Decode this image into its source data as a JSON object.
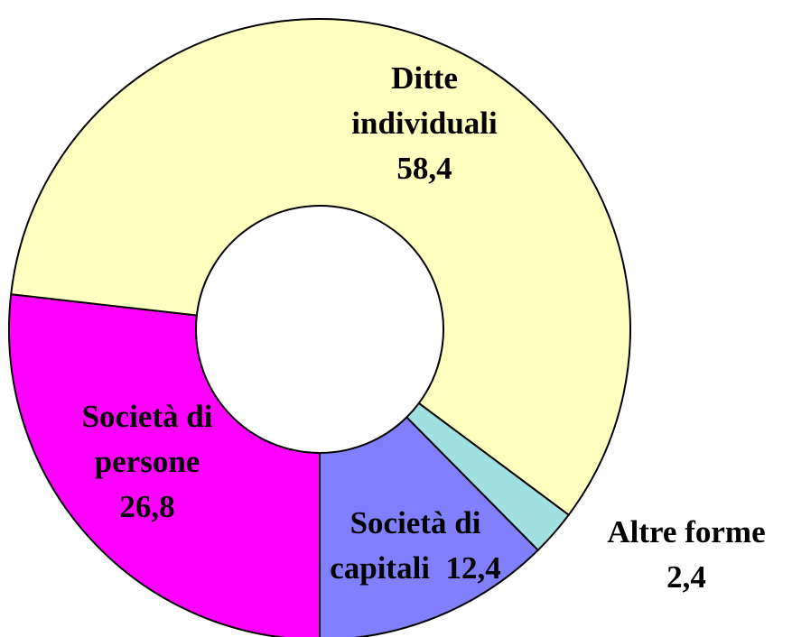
{
  "chart_data": {
    "type": "donut",
    "categories": [
      "Società di persone",
      "Ditte individuali",
      "Altre forme",
      "Società di capitali"
    ],
    "values": [
      26.8,
      58.4,
      2.4,
      12.4
    ],
    "value_labels": [
      "26,8",
      "58,4",
      "2,4",
      "12,4"
    ],
    "colors": [
      "#ff00ff",
      "#ffffc0",
      "#a0e0e0",
      "#8080ff"
    ]
  }
}
